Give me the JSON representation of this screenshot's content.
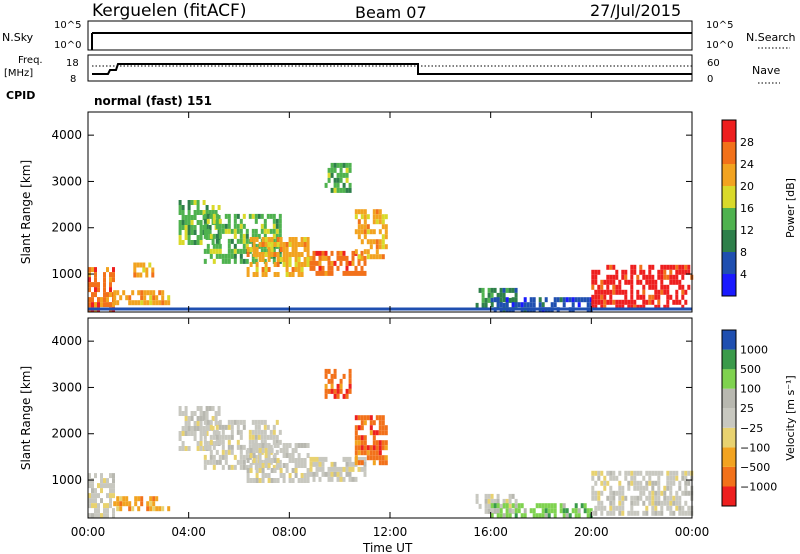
{
  "header": {
    "station": "Kerguelen (fitACF)",
    "beam": "Beam 07",
    "date": "27/Jul/2015"
  },
  "strip": {
    "nsky_label": "N.Sky",
    "nsearch_label": "N.Search",
    "freq_label_1": "Freq.",
    "freq_label_2": "[MHz]",
    "nave_label": "Nave",
    "cpid_label": "CPID",
    "cpid_value": "normal (fast) 151",
    "nsky_ticks": [
      "10^5",
      "10^0"
    ],
    "nsearch_ticks": [
      "10^5",
      "10^0"
    ],
    "freq_ticks": [
      "18",
      "8"
    ],
    "nave_ticks": [
      "60",
      "0"
    ]
  },
  "chart_data": [
    {
      "type": "heatmap",
      "name": "power",
      "ylabel": "Slant Range [km]",
      "xlabel": "Time UT",
      "xticks": [
        "00:00",
        "04:00",
        "08:00",
        "12:00",
        "16:00",
        "20:00",
        "00:00"
      ],
      "yticks": [
        "1000",
        "2000",
        "3000",
        "4000"
      ],
      "ylim": [
        180,
        4500
      ],
      "colorbar_label": "Power [dB]",
      "colorbar_ticks": [
        "28",
        "24",
        "20",
        "16",
        "12",
        "8",
        "4"
      ],
      "colors": [
        "#1a1aff",
        "#1f4fb0",
        "#2e7f4a",
        "#4fb24f",
        "#d9d92a",
        "#f2a320",
        "#f2711a",
        "#ee1f1f"
      ],
      "regions": [
        {
          "t": [
            0.0,
            1.0
          ],
          "r": [
            200,
            1150
          ],
          "level": 6
        },
        {
          "t": [
            1.0,
            3.2
          ],
          "r": [
            380,
            650
          ],
          "level": 5
        },
        {
          "t": [
            1.8,
            2.6
          ],
          "r": [
            950,
            1250
          ],
          "level": 5
        },
        {
          "t": [
            3.6,
            5.2
          ],
          "r": [
            1700,
            2600
          ],
          "level": 3
        },
        {
          "t": [
            4.6,
            7.6
          ],
          "r": [
            1300,
            2300
          ],
          "level": 3
        },
        {
          "t": [
            6.3,
            8.8
          ],
          "r": [
            950,
            1800
          ],
          "level": 5
        },
        {
          "t": [
            8.8,
            11.0
          ],
          "r": [
            1050,
            1500
          ],
          "level": 6
        },
        {
          "t": [
            10.6,
            11.9
          ],
          "r": [
            1400,
            2400
          ],
          "level": 5
        },
        {
          "t": [
            9.4,
            10.4
          ],
          "r": [
            2800,
            3400
          ],
          "level": 3
        },
        {
          "t": [
            15.4,
            17.0
          ],
          "r": [
            350,
            700
          ],
          "level": 2
        },
        {
          "t": [
            16.0,
            20.0
          ],
          "r": [
            250,
            500
          ],
          "level": 1
        },
        {
          "t": [
            20.0,
            24.0
          ],
          "r": [
            300,
            1200
          ],
          "level": 7
        }
      ]
    },
    {
      "type": "heatmap",
      "name": "velocity",
      "ylabel": "Slant Range [km]",
      "xlabel": "Time UT",
      "xticks": [
        "00:00",
        "04:00",
        "08:00",
        "12:00",
        "16:00",
        "20:00",
        "00:00"
      ],
      "yticks": [
        "1000",
        "2000",
        "3000",
        "4000"
      ],
      "ylim": [
        180,
        4500
      ],
      "colorbar_label": "Velocity [m s⁻¹]",
      "colorbar_ticks": [
        "1000",
        "500",
        "100",
        "25",
        "−25",
        "−100",
        "−500",
        "−1000"
      ],
      "colors": [
        "#ee1f1f",
        "#f2711a",
        "#f2a320",
        "#e8d270",
        "#c8c8c0",
        "#b8b8b0",
        "#7fd24f",
        "#3a9a4a",
        "#1f4fb0"
      ],
      "regions": [
        {
          "t": [
            0.0,
            1.0
          ],
          "r": [
            200,
            1150
          ],
          "level": 4
        },
        {
          "t": [
            1.0,
            3.2
          ],
          "r": [
            380,
            650
          ],
          "level": 2
        },
        {
          "t": [
            3.6,
            5.2
          ],
          "r": [
            1700,
            2600
          ],
          "level": 4
        },
        {
          "t": [
            4.6,
            7.6
          ],
          "r": [
            1300,
            2300
          ],
          "level": 4
        },
        {
          "t": [
            6.3,
            8.8
          ],
          "r": [
            950,
            1800
          ],
          "level": 4
        },
        {
          "t": [
            8.8,
            11.0
          ],
          "r": [
            1050,
            1500
          ],
          "level": 4
        },
        {
          "t": [
            10.6,
            11.9
          ],
          "r": [
            1400,
            2400
          ],
          "level": 1
        },
        {
          "t": [
            9.4,
            10.4
          ],
          "r": [
            2800,
            3400
          ],
          "level": 1
        },
        {
          "t": [
            15.4,
            17.0
          ],
          "r": [
            350,
            700
          ],
          "level": 4
        },
        {
          "t": [
            16.0,
            20.0
          ],
          "r": [
            250,
            500
          ],
          "level": 6
        },
        {
          "t": [
            20.0,
            24.0
          ],
          "r": [
            300,
            1200
          ],
          "level": 4
        }
      ]
    }
  ]
}
